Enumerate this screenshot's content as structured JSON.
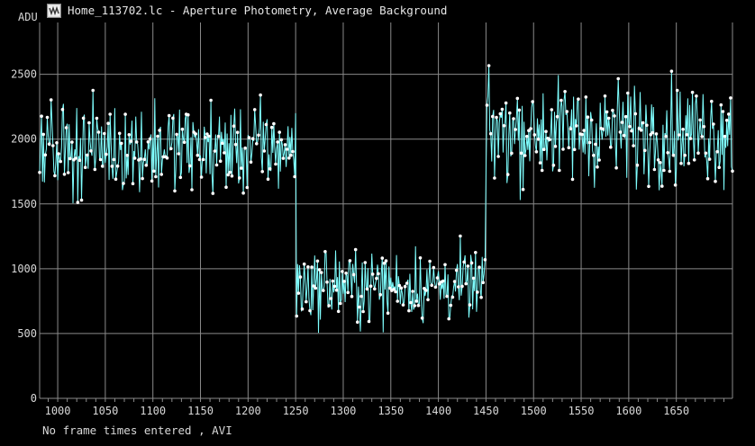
{
  "window": {
    "title": "Home_113702.lc - Aperture Photometry, Average Background",
    "icon": "light-curve-app-icon"
  },
  "footer": {
    "text": "No frame times entered , AVI"
  },
  "colors": {
    "background": "#000000",
    "grid": "#8a8a8a",
    "series": "#7fffff",
    "text": "#d8d8d8"
  },
  "chart_data": {
    "type": "line",
    "title": "",
    "xlabel": "",
    "ylabel": "ADU",
    "xlim": [
      981,
      1709
    ],
    "ylim": [
      0,
      2900
    ],
    "xticks": [
      1000,
      1050,
      1100,
      1150,
      1200,
      1250,
      1300,
      1350,
      1400,
      1450,
      1500,
      1550,
      1600,
      1650
    ],
    "yticks": [
      0,
      500,
      1000,
      1500,
      2000,
      2500
    ],
    "grid": true,
    "legend": "none",
    "series": [
      {
        "name": "",
        "x_start": 981,
        "x_step": 1,
        "marker": "dot",
        "segments": [
          {
            "x_from": 981,
            "x_to": 1250,
            "baseline": 1930,
            "scatter": 230,
            "min": 1380,
            "max": 2430
          },
          {
            "x_from": 1251,
            "x_to": 1449,
            "baseline": 870,
            "scatter": 190,
            "min": 285,
            "max": 1440
          },
          {
            "x_from": 1450,
            "x_to": 1709,
            "baseline": 2060,
            "scatter": 260,
            "min": 1440,
            "max": 2760
          }
        ]
      }
    ]
  }
}
